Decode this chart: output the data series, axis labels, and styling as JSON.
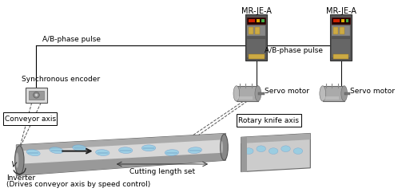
{
  "bg_color": "#ffffff",
  "labels": {
    "mrje_a1": "MR-JE-A",
    "mrje_a2": "MR-JE-A",
    "ab_pulse1": "A/B-phase pulse",
    "ab_pulse2": "A/B-phase pulse",
    "sync_encoder": "Synchronous encoder",
    "conveyor_axis": "Conveyor axis",
    "servo_motor1": "Servo motor",
    "servo_motor2": "Servo motor",
    "rotary_knife": "Rotary knife axis",
    "cutting_length": "Cutting length set",
    "inverter": "Inverter",
    "inverter_sub": "(Drives conveyor axis by speed control)"
  }
}
